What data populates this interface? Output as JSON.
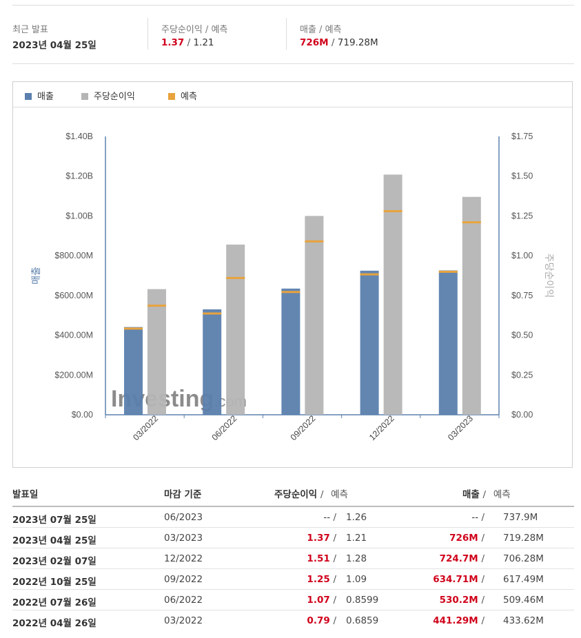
{
  "summary": {
    "latest": {
      "label": "최근 발표",
      "value": "2023년 04월 25일"
    },
    "eps": {
      "label": "주당순이익 / 예측",
      "actual": "1.37",
      "forecast": "1.21"
    },
    "revenue": {
      "label": "매출 / 예측",
      "actual": "726M",
      "forecast": "719.28M"
    }
  },
  "legend": {
    "revenue": "매출",
    "eps": "주당순이익",
    "forecast": "예측"
  },
  "watermark": {
    "brand": "Investing",
    "suffix": ".com"
  },
  "colors": {
    "revenue_bar": "#5b80ad",
    "eps_bar": "#b5b5b5",
    "forecast_marker": "#e8a33d",
    "positive": "#d0021b",
    "axis": "#5b80ad"
  },
  "chart_data": {
    "type": "bar",
    "categories": [
      "03/2022",
      "06/2022",
      "09/2022",
      "12/2022",
      "03/2023"
    ],
    "series": [
      {
        "name": "매출",
        "axis": "left",
        "values": [
          441.29,
          530.2,
          634.71,
          724.7,
          726
        ],
        "unit": "M USD"
      },
      {
        "name": "주당순이익",
        "axis": "right",
        "values": [
          0.79,
          1.07,
          1.25,
          1.51,
          1.37
        ],
        "unit": "USD"
      }
    ],
    "forecasts": {
      "revenue": [
        433.62,
        509.46,
        617.49,
        706.28,
        719.28
      ],
      "eps": [
        0.6859,
        0.8599,
        1.09,
        1.28,
        1.21
      ]
    },
    "left_axis": {
      "label": "매출",
      "ylim": [
        0,
        1400
      ],
      "ticks": [
        "$0.00",
        "$200.00M",
        "$400.00M",
        "$600.00M",
        "$800.00M",
        "$1.00B",
        "$1.20B",
        "$1.40B"
      ]
    },
    "right_axis": {
      "label": "주당순이익",
      "ylim": [
        0,
        1.75
      ],
      "ticks": [
        "$0.00",
        "$0.25",
        "$0.50",
        "$0.75",
        "$1.00",
        "$1.25",
        "$1.50",
        "$1.75"
      ]
    },
    "grid": false,
    "legend_position": "top-left"
  },
  "table": {
    "headers": {
      "date": "발표일",
      "period": "마감 기준",
      "eps": "주당순이익",
      "eps_forecast": "예측",
      "revenue": "매출",
      "revenue_forecast": "예측",
      "sep": "/"
    },
    "rows": [
      {
        "date": "2023년 07월 25일",
        "period": "06/2023",
        "eps": "--",
        "eps_forecast": "1.26",
        "revenue": "--",
        "revenue_forecast": "737.9M",
        "status": "pending"
      },
      {
        "date": "2023년 04월 25일",
        "period": "03/2023",
        "eps": "1.37",
        "eps_forecast": "1.21",
        "revenue": "726M",
        "revenue_forecast": "719.28M",
        "status": "beat"
      },
      {
        "date": "2023년 02월 07일",
        "period": "12/2022",
        "eps": "1.51",
        "eps_forecast": "1.28",
        "revenue": "724.7M",
        "revenue_forecast": "706.28M",
        "status": "beat"
      },
      {
        "date": "2022년 10월 25일",
        "period": "09/2022",
        "eps": "1.25",
        "eps_forecast": "1.09",
        "revenue": "634.71M",
        "revenue_forecast": "617.49M",
        "status": "beat"
      },
      {
        "date": "2022년 07월 26일",
        "period": "06/2022",
        "eps": "1.07",
        "eps_forecast": "0.8599",
        "revenue": "530.2M",
        "revenue_forecast": "509.46M",
        "status": "beat"
      },
      {
        "date": "2022년 04월 26일",
        "period": "03/2022",
        "eps": "0.79",
        "eps_forecast": "0.6859",
        "revenue": "441.29M",
        "revenue_forecast": "433.62M",
        "status": "beat"
      }
    ]
  }
}
